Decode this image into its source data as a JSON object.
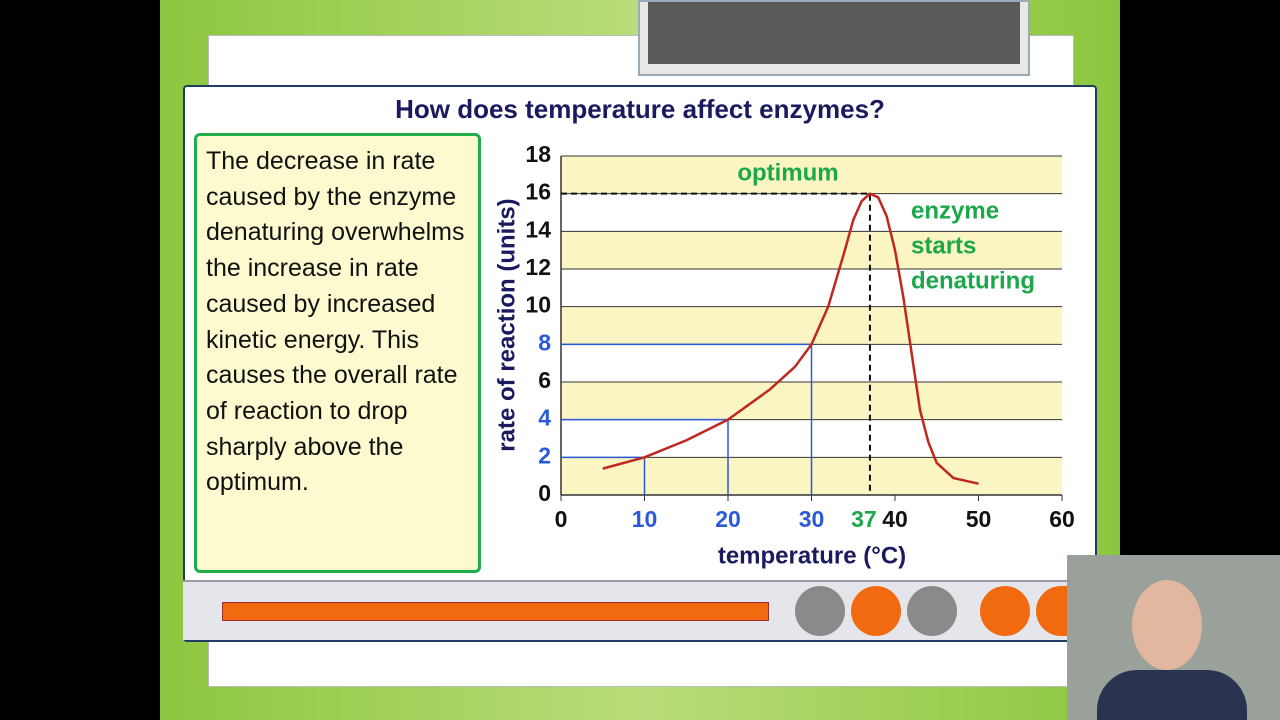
{
  "chart_data": {
    "type": "line",
    "title": "How does temperature affect enzymes?",
    "x_label": "temperature (°C)",
    "y_label": "rate of reaction (units)",
    "xlim": [
      0,
      60
    ],
    "ylim": [
      0,
      18
    ],
    "xticks": [
      0,
      10,
      20,
      30,
      40,
      50,
      60
    ],
    "yticks": [
      0,
      2,
      4,
      6,
      8,
      10,
      12,
      14,
      16,
      18
    ],
    "grid": true,
    "series": [
      {
        "color": "#c0281e",
        "x": [
          5,
          10,
          15,
          20,
          25,
          28,
          30,
          32,
          33,
          34,
          35,
          36,
          37,
          38,
          39,
          40,
          41,
          42,
          43,
          44,
          45,
          47,
          50
        ],
        "values": [
          1.4,
          2,
          2.9,
          4,
          5.6,
          6.8,
          8,
          10,
          11.5,
          13,
          14.6,
          15.6,
          16,
          15.8,
          14.8,
          13,
          10.5,
          7.5,
          4.5,
          2.8,
          1.7,
          0.9,
          0.6
        ]
      }
    ],
    "guides": {
      "color": "#2a5ad8",
      "points": [
        {
          "x": 10,
          "y": 2
        },
        {
          "x": 20,
          "y": 4
        },
        {
          "x": 30,
          "y": 8
        }
      ]
    },
    "optimum": {
      "x": 37,
      "y": 16,
      "label": "optimum",
      "color": "#1aa84a"
    },
    "denature_label": [
      "enzyme",
      "starts",
      "denaturing"
    ]
  },
  "panel": {
    "text": "The decrease in rate caused by the enzyme denaturing overwhelms the increase in rate caused by increased kinetic energy. This causes the overall rate of reaction to drop sharply above the optimum."
  }
}
